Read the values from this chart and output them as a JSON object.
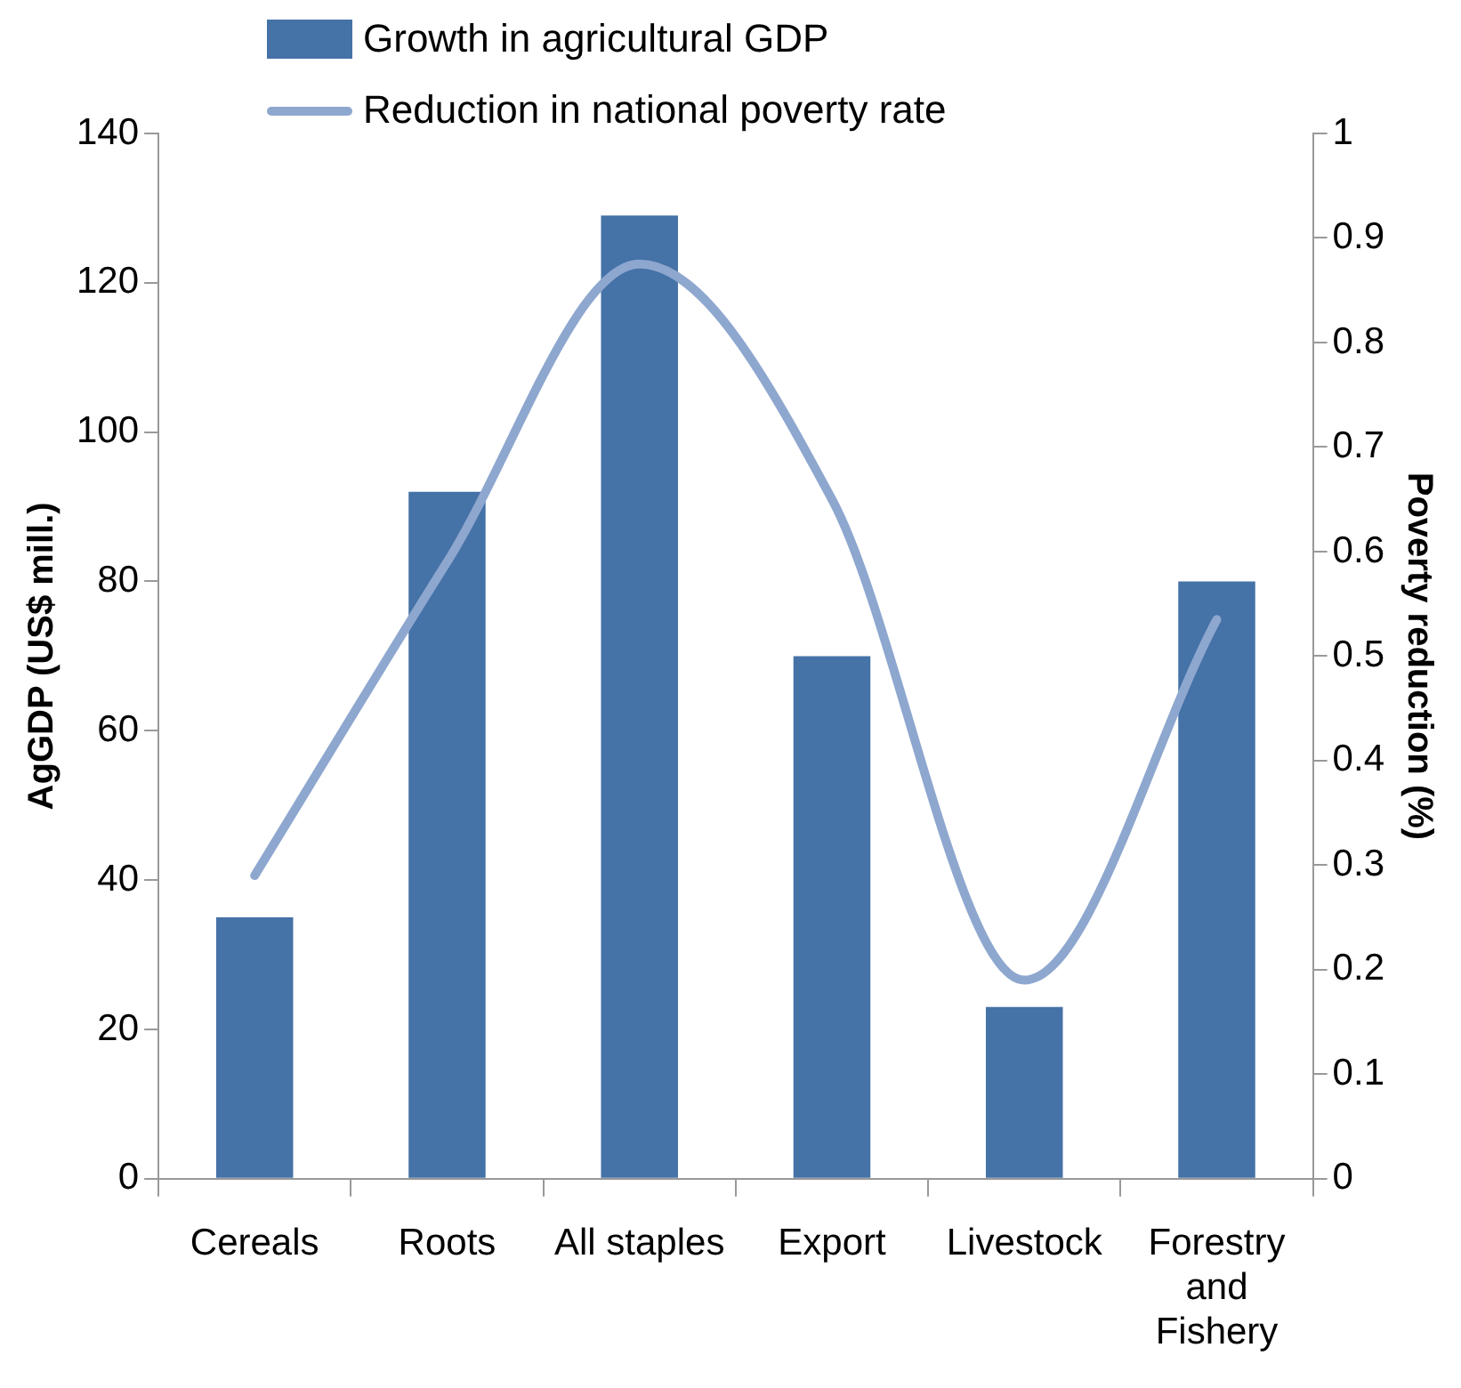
{
  "chart_data": {
    "type": "bar",
    "categories": [
      "Cereals",
      "Roots",
      "All staples",
      "Export",
      "Livestock",
      "Forestry and Fishery"
    ],
    "series": [
      {
        "name": "Growth in agricultural GDP",
        "color": "#4572a7",
        "values": [
          35,
          92,
          129,
          70,
          23,
          80
        ]
      },
      {
        "name": "Reduction in national poverty rate",
        "type": "line",
        "axis": "y2",
        "color": "#8ea7cf",
        "values": [
          0.29,
          0.59,
          0.875,
          0.65,
          0.19,
          0.535
        ]
      }
    ],
    "ylabel": "AgGDP (US$ mill.)",
    "y2label": "Poverty reduction (%)",
    "ylim": [
      0,
      140
    ],
    "yticks": [
      0,
      20,
      40,
      60,
      80,
      100,
      120,
      140
    ],
    "y2lim": [
      0,
      1
    ],
    "y2ticks": [
      0,
      0.1,
      0.2,
      0.3,
      0.4,
      0.5,
      0.6,
      0.7,
      0.8,
      0.9,
      1
    ],
    "grid": false,
    "legend": "top",
    "marker": "none",
    "line_style": "solid"
  }
}
